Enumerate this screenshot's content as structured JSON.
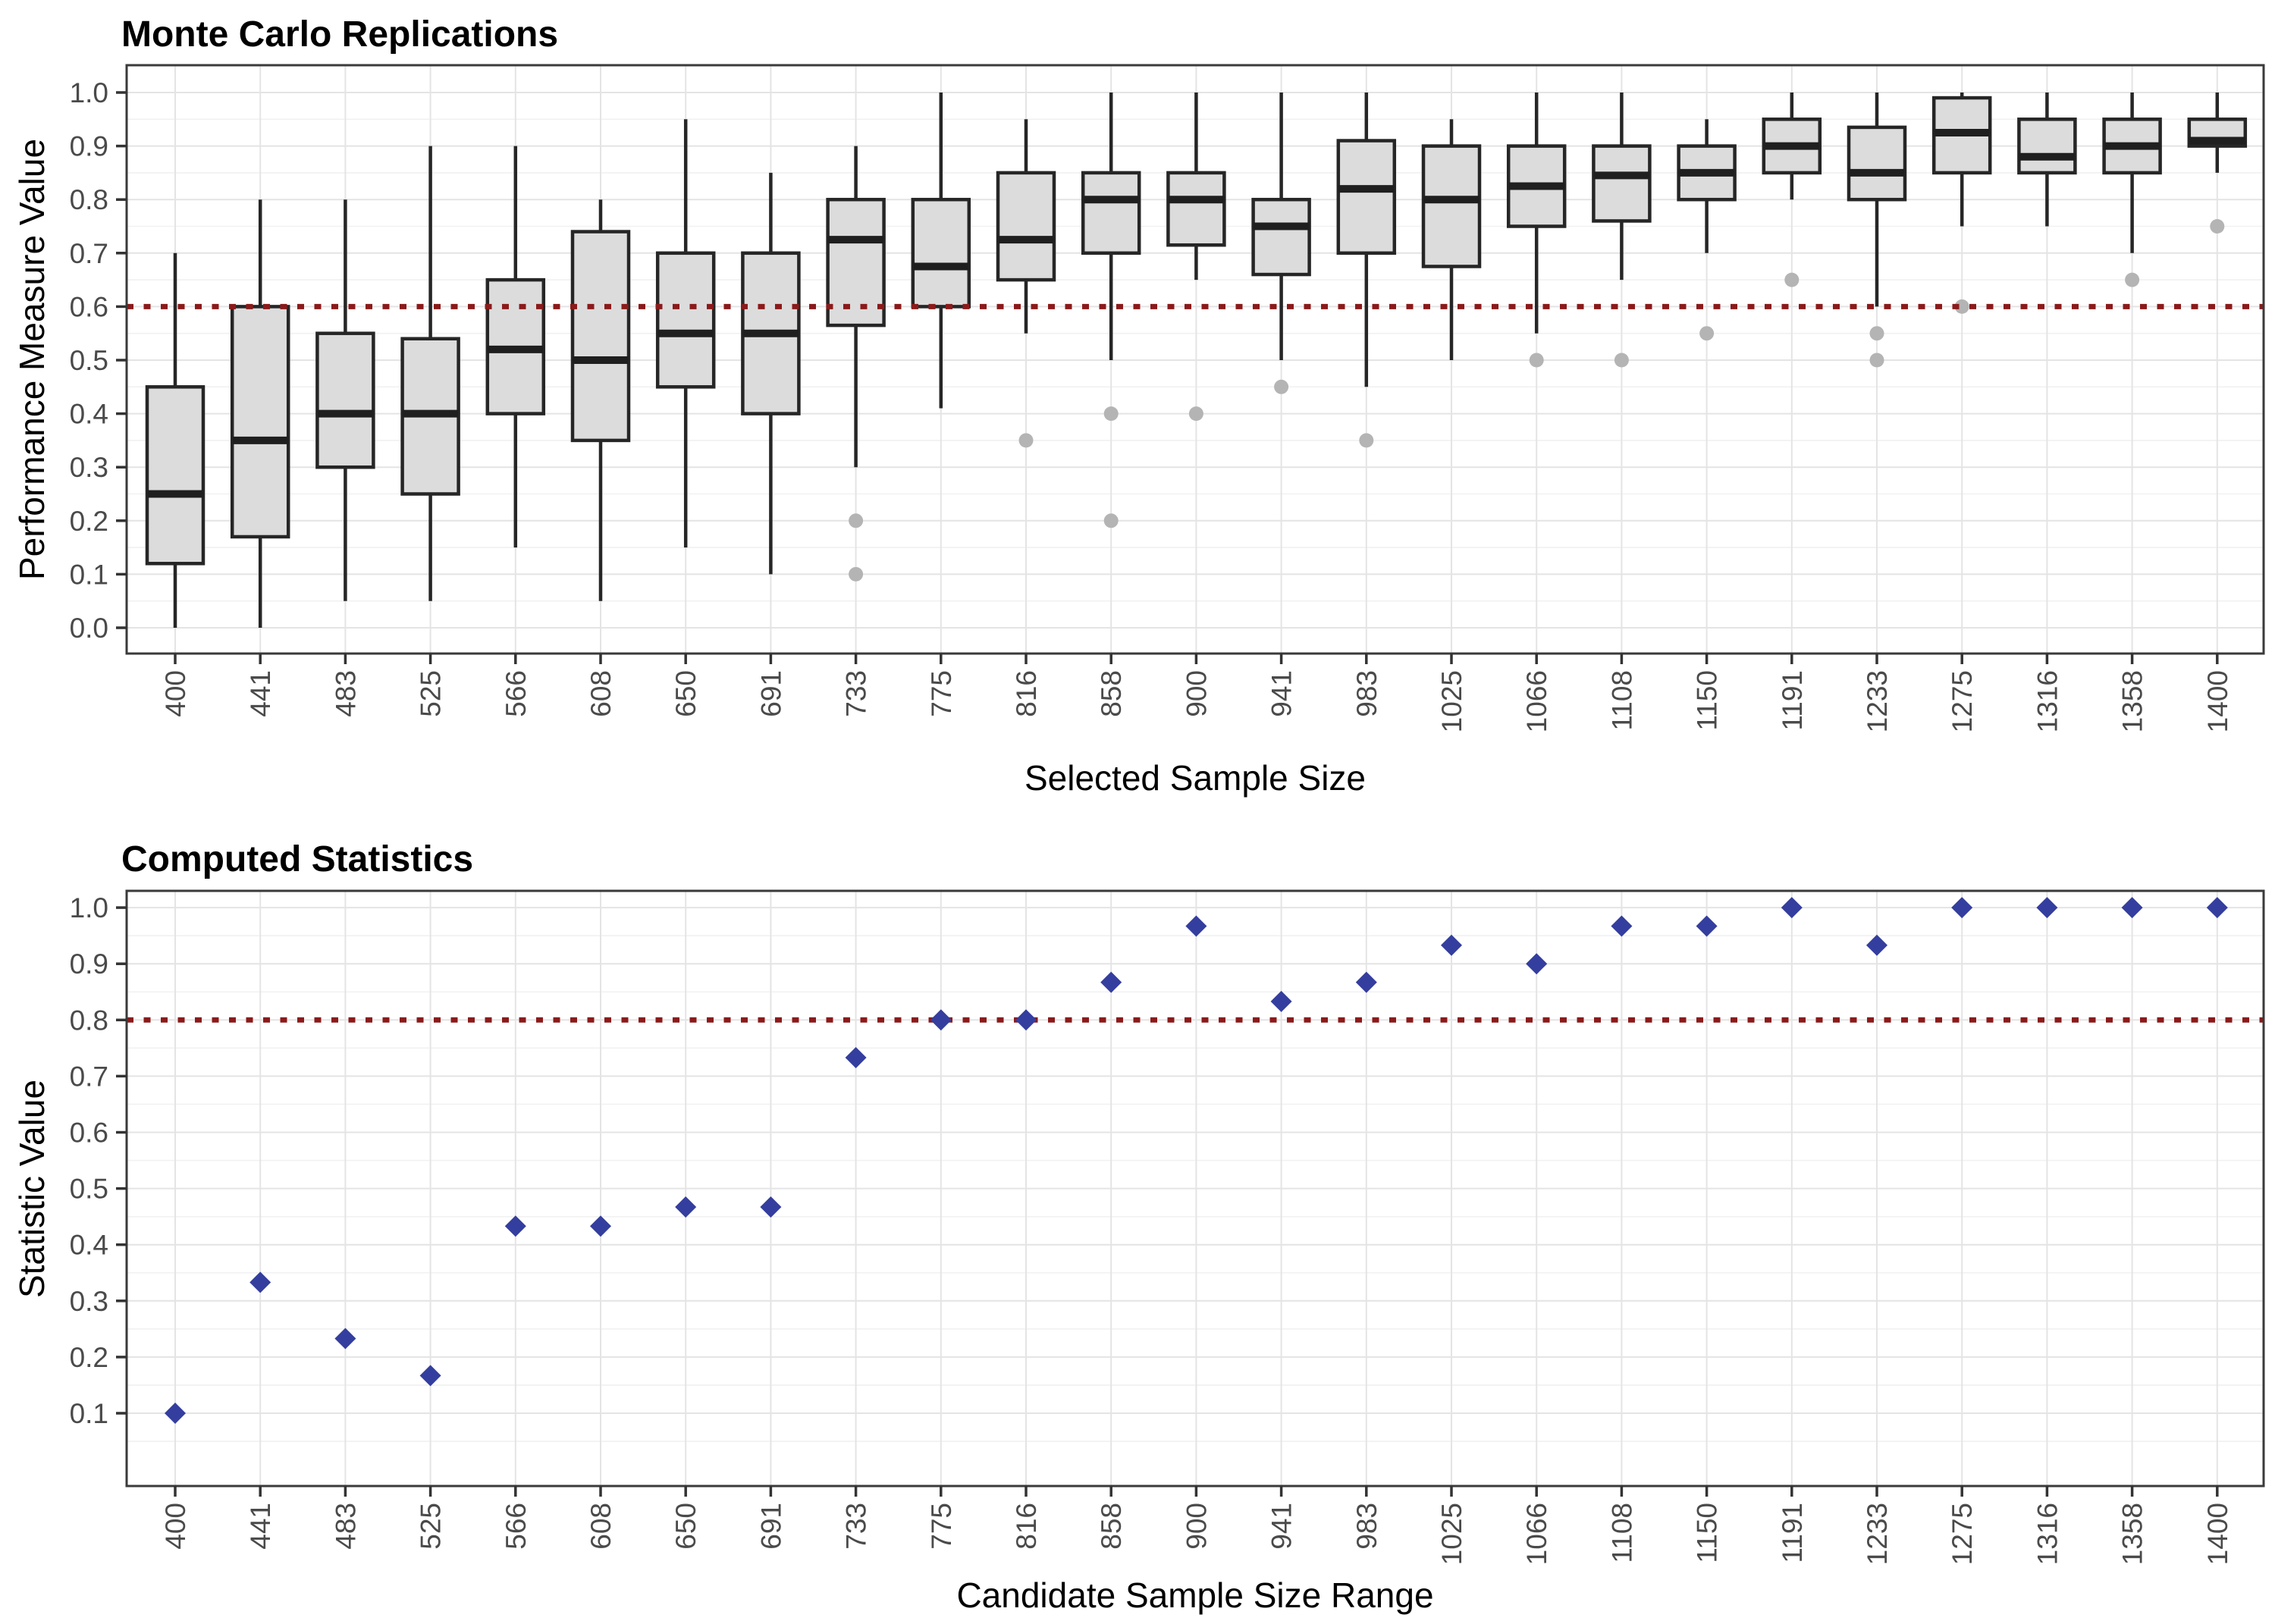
{
  "chart_data": [
    {
      "type": "boxplot",
      "title": "Monte Carlo Replications",
      "xlabel": "Selected Sample Size",
      "ylabel": "Performance Measure Value",
      "legend": "none",
      "grid": "major and minor horizontal, major vertical",
      "ylim": [
        0.0,
        1.0
      ],
      "yticks": [
        "0.0",
        "0.1",
        "0.2",
        "0.3",
        "0.4",
        "0.5",
        "0.6",
        "0.7",
        "0.8",
        "0.9",
        "1.0"
      ],
      "threshold": 0.6,
      "categories": [
        "400",
        "441",
        "483",
        "525",
        "566",
        "608",
        "650",
        "691",
        "733",
        "775",
        "816",
        "858",
        "900",
        "941",
        "983",
        "1025",
        "1066",
        "1108",
        "1150",
        "1191",
        "1233",
        "1275",
        "1316",
        "1358",
        "1400"
      ],
      "boxes": [
        {
          "whislo": 0.0,
          "q1": 0.12,
          "med": 0.25,
          "q3": 0.45,
          "whishi": 0.7,
          "outliers": []
        },
        {
          "whislo": 0.0,
          "q1": 0.17,
          "med": 0.35,
          "q3": 0.6,
          "whishi": 0.8,
          "outliers": []
        },
        {
          "whislo": 0.05,
          "q1": 0.3,
          "med": 0.4,
          "q3": 0.55,
          "whishi": 0.8,
          "outliers": []
        },
        {
          "whislo": 0.05,
          "q1": 0.25,
          "med": 0.4,
          "q3": 0.54,
          "whishi": 0.9,
          "outliers": []
        },
        {
          "whislo": 0.15,
          "q1": 0.4,
          "med": 0.52,
          "q3": 0.65,
          "whishi": 0.9,
          "outliers": []
        },
        {
          "whislo": 0.05,
          "q1": 0.35,
          "med": 0.5,
          "q3": 0.74,
          "whishi": 0.8,
          "outliers": []
        },
        {
          "whislo": 0.15,
          "q1": 0.45,
          "med": 0.55,
          "q3": 0.7,
          "whishi": 0.95,
          "outliers": []
        },
        {
          "whislo": 0.1,
          "q1": 0.4,
          "med": 0.55,
          "q3": 0.7,
          "whishi": 0.85,
          "outliers": []
        },
        {
          "whislo": 0.3,
          "q1": 0.565,
          "med": 0.725,
          "q3": 0.8,
          "whishi": 0.9,
          "outliers": [
            0.2,
            0.1
          ]
        },
        {
          "whislo": 0.41,
          "q1": 0.6,
          "med": 0.675,
          "q3": 0.8,
          "whishi": 1.0,
          "outliers": []
        },
        {
          "whislo": 0.55,
          "q1": 0.65,
          "med": 0.725,
          "q3": 0.85,
          "whishi": 0.95,
          "outliers": [
            0.35
          ]
        },
        {
          "whislo": 0.5,
          "q1": 0.7,
          "med": 0.8,
          "q3": 0.85,
          "whishi": 1.0,
          "outliers": [
            0.4,
            0.2
          ]
        },
        {
          "whislo": 0.65,
          "q1": 0.715,
          "med": 0.8,
          "q3": 0.85,
          "whishi": 1.0,
          "outliers": [
            0.4
          ]
        },
        {
          "whislo": 0.5,
          "q1": 0.66,
          "med": 0.75,
          "q3": 0.8,
          "whishi": 1.0,
          "outliers": [
            0.45
          ]
        },
        {
          "whislo": 0.45,
          "q1": 0.7,
          "med": 0.82,
          "q3": 0.91,
          "whishi": 1.0,
          "outliers": [
            0.35
          ]
        },
        {
          "whislo": 0.5,
          "q1": 0.675,
          "med": 0.8,
          "q3": 0.9,
          "whishi": 0.95,
          "outliers": []
        },
        {
          "whislo": 0.55,
          "q1": 0.75,
          "med": 0.825,
          "q3": 0.9,
          "whishi": 1.0,
          "outliers": [
            0.5
          ]
        },
        {
          "whislo": 0.65,
          "q1": 0.76,
          "med": 0.845,
          "q3": 0.9,
          "whishi": 1.0,
          "outliers": [
            0.5
          ]
        },
        {
          "whislo": 0.7,
          "q1": 0.8,
          "med": 0.85,
          "q3": 0.9,
          "whishi": 0.95,
          "outliers": [
            0.55
          ]
        },
        {
          "whislo": 0.8,
          "q1": 0.85,
          "med": 0.9,
          "q3": 0.95,
          "whishi": 1.0,
          "outliers": [
            0.65
          ]
        },
        {
          "whislo": 0.6,
          "q1": 0.8,
          "med": 0.85,
          "q3": 0.935,
          "whishi": 1.0,
          "outliers": [
            0.55,
            0.5
          ]
        },
        {
          "whislo": 0.75,
          "q1": 0.85,
          "med": 0.925,
          "q3": 0.99,
          "whishi": 1.0,
          "outliers": [
            0.6
          ]
        },
        {
          "whislo": 0.75,
          "q1": 0.85,
          "med": 0.88,
          "q3": 0.95,
          "whishi": 1.0,
          "outliers": []
        },
        {
          "whislo": 0.7,
          "q1": 0.85,
          "med": 0.9,
          "q3": 0.95,
          "whishi": 1.0,
          "outliers": [
            0.65
          ]
        },
        {
          "whislo": 0.85,
          "q1": 0.9,
          "med": 0.91,
          "q3": 0.95,
          "whishi": 1.0,
          "outliers": [
            0.75
          ]
        }
      ]
    },
    {
      "type": "scatter",
      "title": "Computed Statistics",
      "xlabel": "Candidate Sample Size Range",
      "ylabel": "Statistic Value",
      "legend": "none",
      "grid": "major and minor horizontal, major vertical",
      "marker": "diamond",
      "ylim": [
        0.05,
        1.0
      ],
      "yticks": [
        "0.1",
        "0.2",
        "0.3",
        "0.4",
        "0.5",
        "0.6",
        "0.7",
        "0.8",
        "0.9",
        "1.0"
      ],
      "threshold": 0.8,
      "categories": [
        "400",
        "441",
        "483",
        "525",
        "566",
        "608",
        "650",
        "691",
        "733",
        "775",
        "816",
        "858",
        "900",
        "941",
        "983",
        "1025",
        "1066",
        "1108",
        "1150",
        "1191",
        "1233",
        "1275",
        "1316",
        "1358",
        "1400"
      ],
      "values": [
        0.1,
        0.333,
        0.233,
        0.167,
        0.433,
        0.433,
        0.467,
        0.467,
        0.733,
        0.8,
        0.8,
        0.867,
        0.967,
        0.833,
        0.867,
        0.933,
        0.9,
        0.967,
        0.967,
        1.0,
        0.933,
        1.0,
        1.0,
        1.0,
        1.0
      ]
    }
  ],
  "colors": {
    "box_fill": "#DCDCDC",
    "box_stroke": "#262626",
    "median_stroke": "#1F1F1F",
    "outlier_fill": "#B4B4B4",
    "threshold_line": "#8B1A1A",
    "diamond_fill": "#343E9E",
    "grid_major": "#E4E4E4",
    "grid_minor": "#F1F1F1",
    "panel_border": "#3A3A3A",
    "tick_mark": "#333333",
    "tick_text": "#4A4A4A",
    "title_text": "#000000",
    "background": "#FFFFFF"
  }
}
